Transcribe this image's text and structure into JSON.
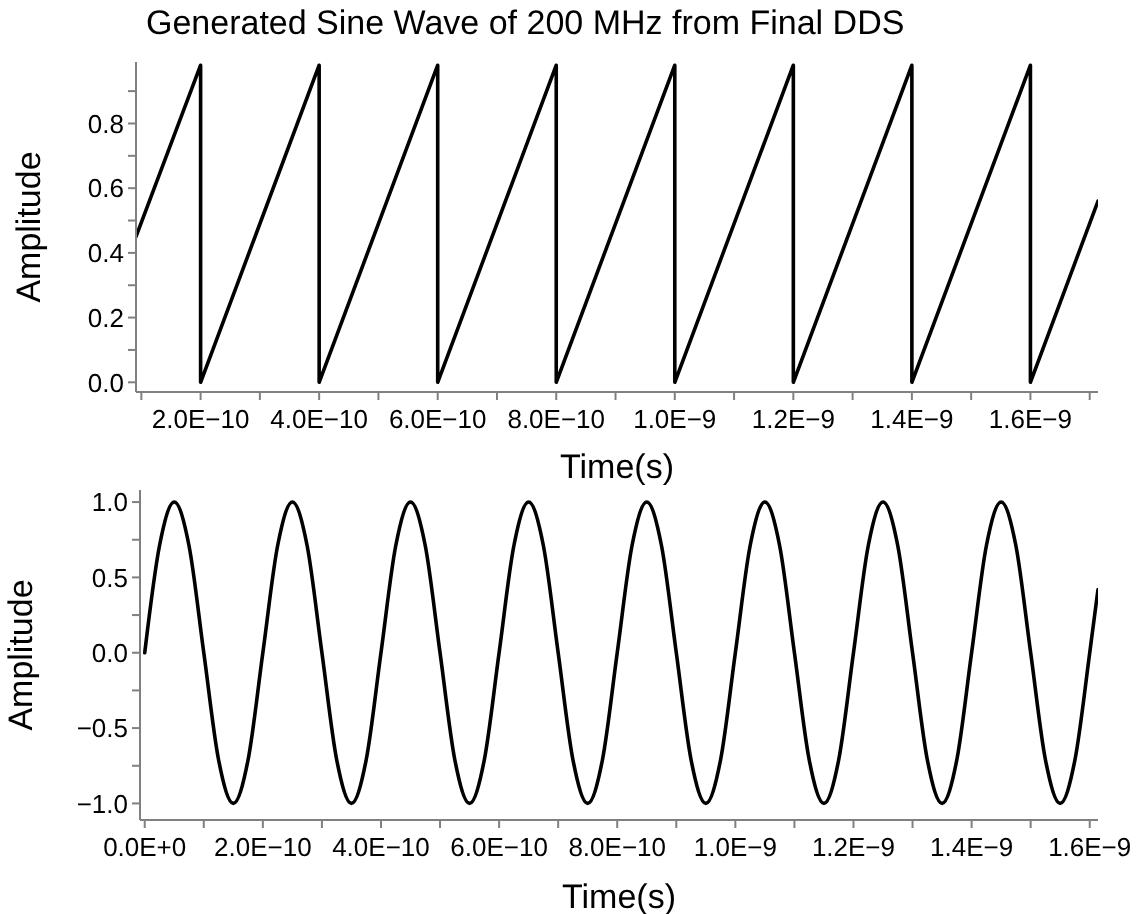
{
  "chart_data": [
    {
      "type": "line",
      "title": "Generated Sine Wave of 200 MHz from Final DDS",
      "xlabel": "Time(s)",
      "ylabel": "Amplitude",
      "marker": "none",
      "line_style": "solid",
      "xlim": [
        9.1e-11,
        1.714e-09
      ],
      "ylim": [
        -0.03,
        0.99
      ],
      "xticks": [
        {
          "value": 1e-10,
          "label": null
        },
        {
          "value": 2e-10,
          "label": "2.0E−10"
        },
        {
          "value": 3e-10,
          "label": null
        },
        {
          "value": 4e-10,
          "label": "4.0E−10"
        },
        {
          "value": 5e-10,
          "label": null
        },
        {
          "value": 6e-10,
          "label": "6.0E−10"
        },
        {
          "value": 7e-10,
          "label": null
        },
        {
          "value": 8e-10,
          "label": "8.0E−10"
        },
        {
          "value": 9e-10,
          "label": null
        },
        {
          "value": 1e-09,
          "label": "1.0E−9"
        },
        {
          "value": 1.1e-09,
          "label": null
        },
        {
          "value": 1.2e-09,
          "label": "1.2E−9"
        },
        {
          "value": 1.3e-09,
          "label": null
        },
        {
          "value": 1.4e-09,
          "label": "1.4E−9"
        },
        {
          "value": 1.5e-09,
          "label": null
        },
        {
          "value": 1.6e-09,
          "label": "1.6E−9"
        },
        {
          "value": 1.7e-09,
          "label": null
        }
      ],
      "yticks": [
        {
          "value": 0,
          "label": "0.0"
        },
        {
          "value": 0.1,
          "label": null
        },
        {
          "value": 0.2,
          "label": "0.2"
        },
        {
          "value": 0.3,
          "label": null
        },
        {
          "value": 0.4,
          "label": "0.4"
        },
        {
          "value": 0.5,
          "label": null
        },
        {
          "value": 0.6,
          "label": "0.6"
        },
        {
          "value": 0.7,
          "label": null
        },
        {
          "value": 0.8,
          "label": "0.8"
        },
        {
          "value": 0.9,
          "label": null
        }
      ],
      "series": [
        {
          "color": "#000000",
          "x": [
            9.1e-11,
            2e-10,
            2e-10,
            4e-10,
            4e-10,
            6e-10,
            6e-10,
            8e-10,
            8e-10,
            1e-09,
            1e-09,
            1.2e-09,
            1.2e-09,
            1.4e-09,
            1.4e-09,
            1.6e-09,
            1.6e-09,
            1.714e-09
          ],
          "values": [
            0.45,
            0.98,
            0,
            0.98,
            0,
            0.98,
            0,
            0.98,
            0,
            0.98,
            0,
            0.98,
            0,
            0.98,
            0,
            0.98,
            0,
            0.56
          ]
        }
      ]
    },
    {
      "type": "line",
      "xlabel": "Time(s)",
      "ylabel": "Amplitude",
      "marker": "none",
      "line_style": "solid",
      "xlim": [
        -8e-12,
        1.614e-09
      ],
      "ylim": [
        -1.11,
        1.08
      ],
      "xticks": [
        {
          "value": 0,
          "label": "0.0E+0"
        },
        {
          "value": 1e-10,
          "label": null
        },
        {
          "value": 2e-10,
          "label": "2.0E−10"
        },
        {
          "value": 3e-10,
          "label": null
        },
        {
          "value": 4e-10,
          "label": "4.0E−10"
        },
        {
          "value": 5e-10,
          "label": null
        },
        {
          "value": 6e-10,
          "label": "6.0E−10"
        },
        {
          "value": 7e-10,
          "label": null
        },
        {
          "value": 8e-10,
          "label": "8.0E−10"
        },
        {
          "value": 9e-10,
          "label": null
        },
        {
          "value": 1e-09,
          "label": "1.0E−9"
        },
        {
          "value": 1.1e-09,
          "label": null
        },
        {
          "value": 1.2e-09,
          "label": "1.2E−9"
        },
        {
          "value": 1.3e-09,
          "label": null
        },
        {
          "value": 1.4e-09,
          "label": "1.4E−9"
        },
        {
          "value": 1.5e-09,
          "label": null
        },
        {
          "value": 1.6e-09,
          "label": "1.6E−9"
        }
      ],
      "yticks": [
        {
          "value": -1,
          "label": "−1.0"
        },
        {
          "value": -0.75,
          "label": null
        },
        {
          "value": -0.5,
          "label": "−0.5"
        },
        {
          "value": -0.25,
          "label": null
        },
        {
          "value": 0,
          "label": "0.0"
        },
        {
          "value": 0.25,
          "label": null
        },
        {
          "value": 0.5,
          "label": "0.5"
        },
        {
          "value": 0.75,
          "label": null
        },
        {
          "value": 1,
          "label": "1.0"
        }
      ],
      "series": [
        {
          "color": "#000000",
          "x": [
            0,
            2.5e-11,
            5e-11,
            7.5e-11,
            1e-10,
            1.25e-10,
            1.5e-10,
            1.75e-10,
            2e-10,
            2.25e-10,
            2.5e-10,
            2.75e-10,
            3e-10,
            3.25e-10,
            3.5e-10,
            3.75e-10,
            4e-10,
            4.25e-10,
            4.5e-10,
            4.75e-10,
            5e-10,
            5.25e-10,
            5.5e-10,
            5.75e-10,
            6e-10,
            6.25e-10,
            6.5e-10,
            6.75e-10,
            7e-10,
            7.25e-10,
            7.5e-10,
            7.75e-10,
            8e-10,
            8.25e-10,
            8.5e-10,
            8.75e-10,
            9e-10,
            9.25e-10,
            9.5e-10,
            9.75e-10,
            1e-09,
            1.025e-09,
            1.05e-09,
            1.075e-09,
            1.1e-09,
            1.125e-09,
            1.15e-09,
            1.175e-09,
            1.2e-09,
            1.225e-09,
            1.25e-09,
            1.275e-09,
            1.3e-09,
            1.325e-09,
            1.35e-09,
            1.375e-09,
            1.4e-09,
            1.425e-09,
            1.45e-09,
            1.475e-09,
            1.5e-09,
            1.525e-09,
            1.55e-09,
            1.575e-09,
            1.6e-09,
            1.614e-09
          ],
          "values": [
            0,
            0.71,
            1,
            0.71,
            0,
            -0.71,
            -1,
            -0.71,
            0,
            0.71,
            1,
            0.71,
            0,
            -0.71,
            -1,
            -0.71,
            0,
            0.71,
            1,
            0.71,
            0,
            -0.71,
            -1,
            -0.71,
            0,
            0.71,
            1,
            0.71,
            0,
            -0.71,
            -1,
            -0.71,
            0,
            0.71,
            1,
            0.71,
            0,
            -0.71,
            -1,
            -0.71,
            0,
            0.71,
            1,
            0.71,
            0,
            -0.71,
            -1,
            -0.71,
            0,
            0.71,
            1,
            0.71,
            0,
            -0.71,
            -1,
            -0.71,
            0,
            0.71,
            1,
            0.71,
            0,
            -0.71,
            -1,
            -0.71,
            0,
            0.42
          ]
        }
      ]
    }
  ]
}
